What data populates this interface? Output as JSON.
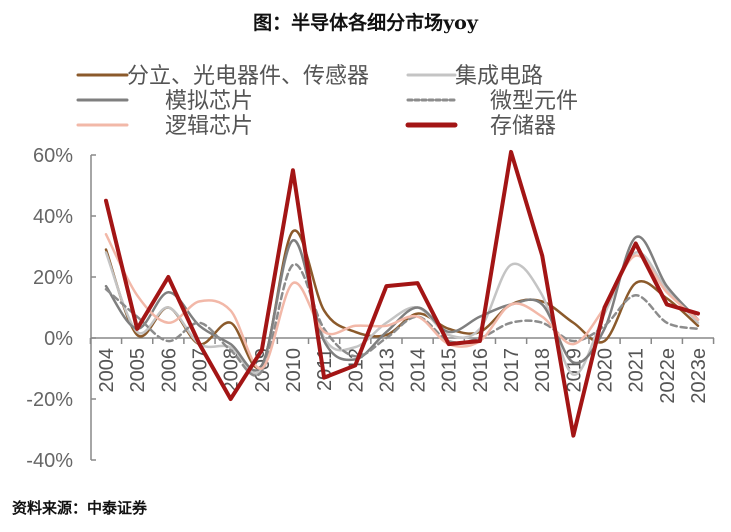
{
  "title": "图：半导体各细分市场yoy",
  "source": "资料来源：中泰证券",
  "chart_data": {
    "type": "line",
    "title": "图：半导体各细分市场yoy",
    "xlabel": "",
    "ylabel": "",
    "categories": [
      "2004",
      "2005",
      "2006",
      "2007",
      "2008",
      "2009",
      "2010",
      "2011",
      "2012",
      "2013",
      "2014",
      "2015",
      "2016",
      "2017",
      "2018",
      "2019",
      "2020",
      "2021",
      "2022e",
      "2023e"
    ],
    "ylim": [
      -40,
      60
    ],
    "yticks": [
      -40,
      -20,
      0,
      20,
      40,
      60
    ],
    "ytick_labels": [
      "-40%",
      "-20%",
      "0%",
      "20%",
      "40%",
      "60%"
    ],
    "grid": false,
    "legend_position": "top",
    "series": [
      {
        "name": "分立、光电器件、传感器",
        "color": "#8B5A2B",
        "style": "solid",
        "smooth": true,
        "values": [
          29,
          1,
          10,
          -2,
          5,
          -9,
          35,
          9,
          2,
          1,
          8,
          3,
          2,
          11,
          12,
          5,
          -1,
          18,
          13,
          4
        ]
      },
      {
        "name": "集成电路",
        "color": "#C4C4C4",
        "style": "solid",
        "smooth": true,
        "values": [
          28,
          2,
          10,
          -2,
          -3,
          -10,
          32,
          0,
          -3,
          5,
          10,
          1,
          3,
          24,
          14,
          -12,
          8,
          28,
          16,
          5
        ]
      },
      {
        "name": "模拟芯片",
        "color": "#7F7F7F",
        "style": "solid",
        "smooth": true,
        "values": [
          17,
          3,
          15,
          4,
          -2,
          -9,
          32,
          -1,
          -7,
          2,
          10,
          2,
          7,
          11,
          11,
          -8,
          3,
          33,
          17,
          6
        ]
      },
      {
        "name": "微型元件",
        "color": "#8C8C8C",
        "style": "dashed",
        "smooth": true,
        "values": [
          16,
          7,
          -1,
          5,
          -4,
          -11,
          24,
          3,
          -6,
          0,
          7,
          -1,
          0,
          5,
          5,
          -1,
          4,
          14,
          5,
          3
        ]
      },
      {
        "name": "逻辑芯片",
        "color": "#F2B8A8",
        "style": "solid",
        "smooth": true,
        "values": [
          34,
          14,
          5,
          12,
          9,
          -10,
          18,
          2,
          4,
          4,
          7,
          -2,
          -1,
          11,
          7,
          -2,
          10,
          27,
          15,
          6
        ]
      },
      {
        "name": "存储器",
        "color": "#A31515",
        "style": "solid",
        "smooth": false,
        "values": [
          45,
          3,
          20,
          -2,
          -20,
          -4,
          55,
          -13,
          -9,
          17,
          18,
          -2,
          -1,
          61,
          27,
          -32,
          10,
          31,
          11,
          8
        ]
      }
    ]
  }
}
